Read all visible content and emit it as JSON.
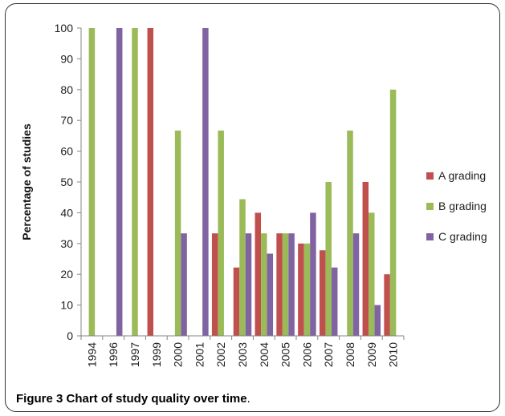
{
  "caption": {
    "bold": "Figure 3 Chart of study quality over time",
    "suffix": "."
  },
  "chart_data": {
    "type": "bar",
    "title": "",
    "xlabel": "",
    "ylabel": "Percentage of studies",
    "ylim": [
      0,
      100
    ],
    "yticks": [
      0,
      10,
      20,
      30,
      40,
      50,
      60,
      70,
      80,
      90,
      100
    ],
    "grid": false,
    "legend_position": "right",
    "categories": [
      "1994",
      "1996",
      "1997",
      "1999",
      "2000",
      "2001",
      "2002",
      "2003",
      "2004",
      "2005",
      "2006",
      "2007",
      "2008",
      "2009",
      "2010"
    ],
    "series": [
      {
        "name": "A grading",
        "color": "#c0504d",
        "values": [
          0,
          0,
          0,
          100,
          0,
          0,
          33.3,
          22.2,
          40,
          33.3,
          30,
          27.8,
          0,
          50,
          20
        ]
      },
      {
        "name": "B grading",
        "color": "#9bbb59",
        "values": [
          100,
          0,
          100,
          0,
          66.7,
          0,
          66.7,
          44.4,
          33.3,
          33.3,
          30,
          50,
          66.7,
          40,
          80
        ]
      },
      {
        "name": "C grading",
        "color": "#8064a2",
        "values": [
          0,
          100,
          0,
          0,
          33.3,
          100,
          0,
          33.3,
          26.7,
          33.3,
          40,
          22.2,
          33.3,
          10,
          0
        ]
      }
    ]
  }
}
